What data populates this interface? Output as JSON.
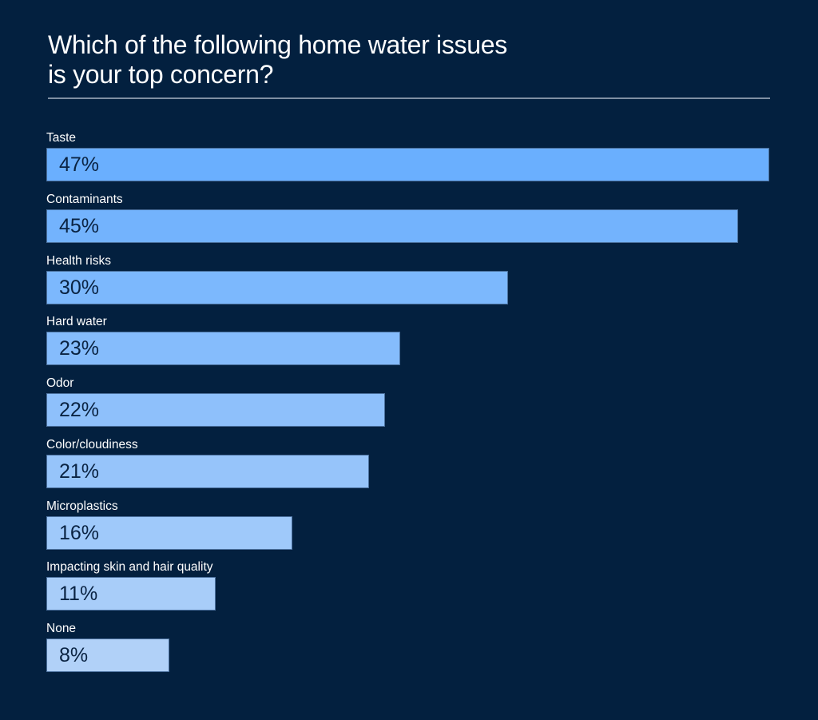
{
  "chart_data": {
    "type": "bar",
    "orientation": "horizontal",
    "title": "Which of the following home water issues is your top concern?",
    "title_lines": [
      "Which of the following home water issues",
      "is your top concern?"
    ],
    "categories": [
      "Taste",
      "Contaminants",
      "Health risks",
      "Hard water",
      "Odor",
      "Color/cloudiness",
      "Microplastics",
      "Impacting skin  and hair quality",
      "None"
    ],
    "values": [
      47,
      45,
      30,
      23,
      22,
      21,
      16,
      11,
      8
    ],
    "labels": [
      "47%",
      "45%",
      "30%",
      "23%",
      "22%",
      "21%",
      "16%",
      "11%",
      "8%"
    ],
    "unit": "%",
    "xlim": [
      0,
      47
    ],
    "grid": false,
    "colors": {
      "background": "#03203f",
      "bar_start": "#6aaffe",
      "bar_end": "#b1d1f8",
      "label": "#ffffff",
      "value": "#0a2342"
    }
  }
}
